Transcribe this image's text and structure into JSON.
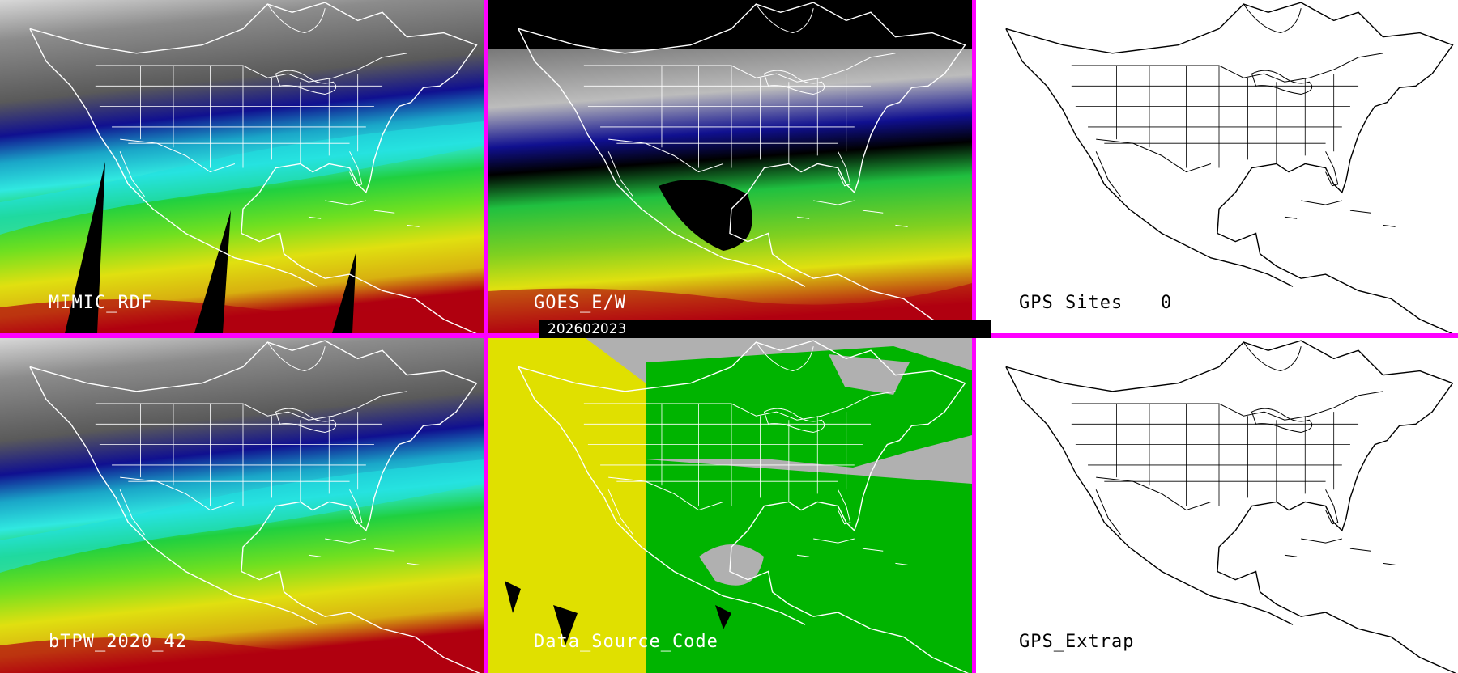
{
  "timestamp": "202602023",
  "panels": {
    "mimic": {
      "label": "MIMIC_RDF"
    },
    "goes": {
      "label": "GOES_E/W"
    },
    "gps_sites": {
      "label": "GPS Sites",
      "count": "0"
    },
    "btpw": {
      "label": "bTPW_2020_42"
    },
    "data_source": {
      "label": "Data_Source_Code"
    },
    "gps_extrap": {
      "label": "GPS_Extrap"
    }
  },
  "colors": {
    "separator": "#ff00ff",
    "moisture_dry": "#808080",
    "moisture_blue": "#1010a0",
    "moisture_cyan": "#20e0e8",
    "moisture_green": "#20d020",
    "moisture_yellow": "#e0e010",
    "moisture_red": "#b00010",
    "source_gray": "#b0b0b0",
    "source_yellow": "#e0e000",
    "source_green": "#00b400"
  }
}
